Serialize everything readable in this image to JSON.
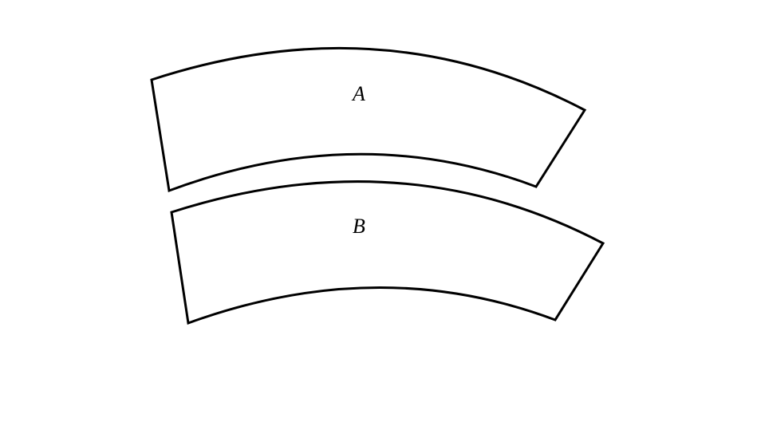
{
  "diagram": {
    "shapes": [
      {
        "label": "A"
      },
      {
        "label": "B"
      }
    ]
  },
  "colors": {
    "stroke": "#000000",
    "fill": "#ffffff",
    "background": "#ffffff"
  }
}
